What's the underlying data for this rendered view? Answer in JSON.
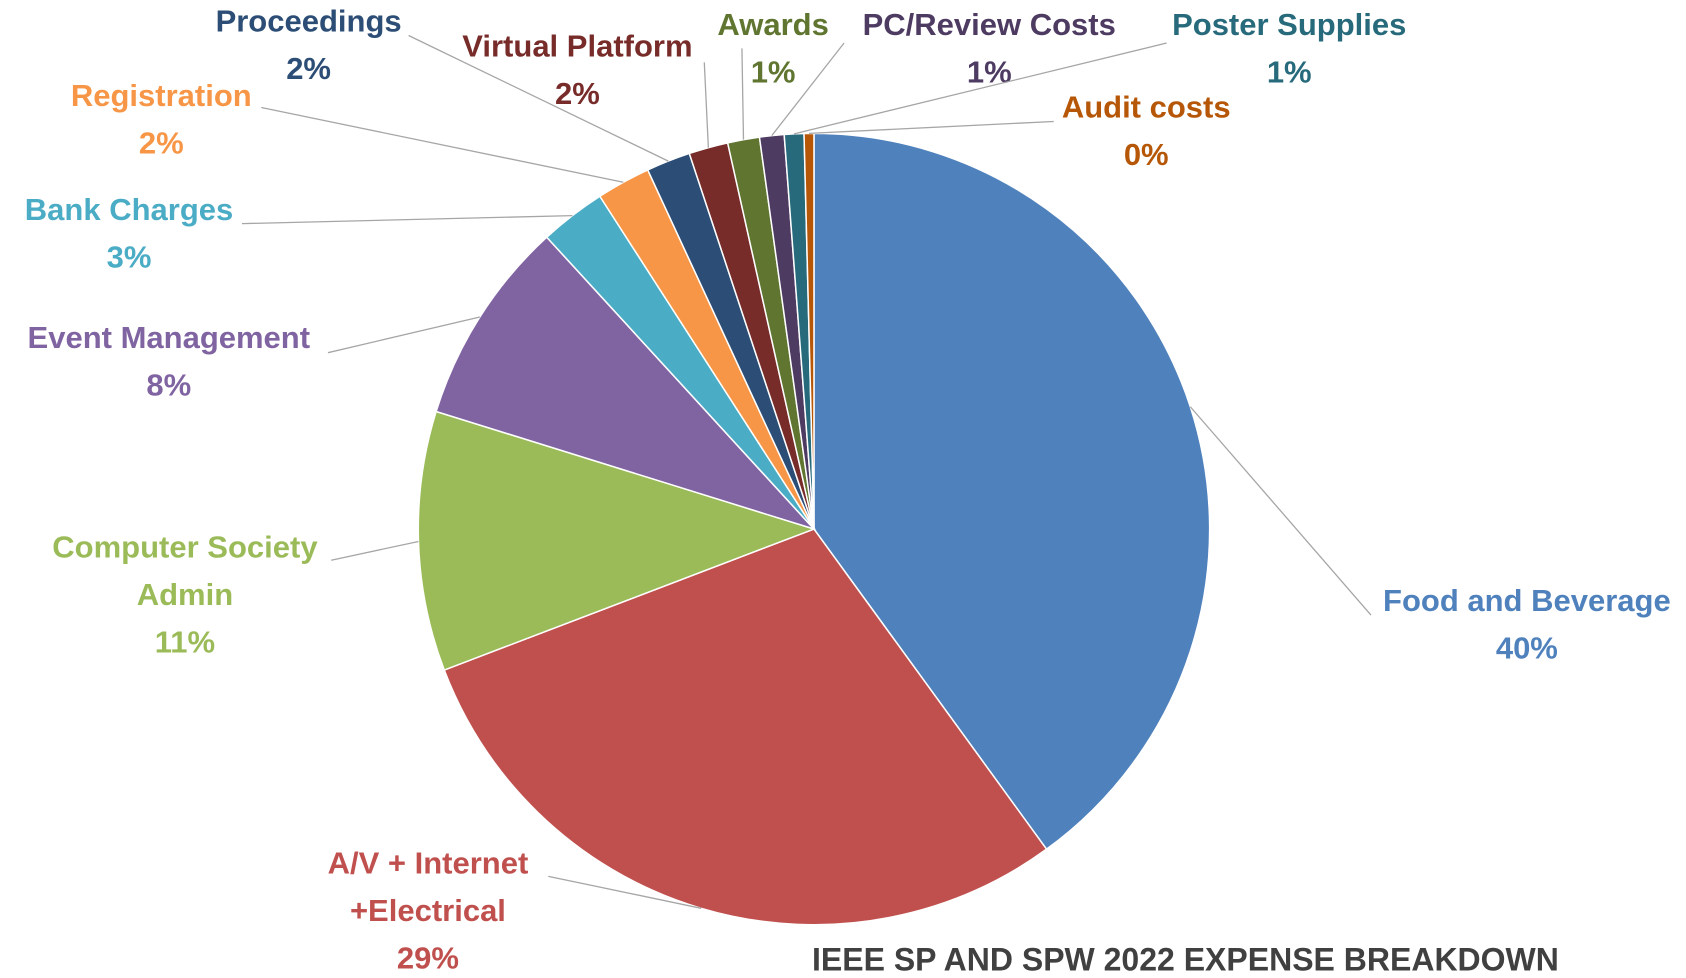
{
  "chart_data": {
    "type": "pie",
    "title": "IEEE SP AND SPW 2022 EXPENSE BREAKDOWN",
    "categories": [
      "Food and Beverage",
      "A/V + Internet +Electrical",
      "Computer Society Admin",
      "Event Management",
      "Bank Charges",
      "Registration",
      "Proceedings",
      "Virtual Platform",
      "Awards",
      "PC/Review Costs",
      "Poster Supplies",
      "Audit costs"
    ],
    "values": [
      40.0,
      29.2,
      10.6,
      8.4,
      2.7,
      2.2,
      1.8,
      1.6,
      1.3,
      1.0,
      0.8,
      0.4
    ],
    "value_labels": [
      "40%",
      "29%",
      "11%",
      "8%",
      "3%",
      "2%",
      "2%",
      "2%",
      "1%",
      "1%",
      "1%",
      "0%"
    ],
    "colors": [
      "#4f81bd",
      "#c0504d",
      "#9bbb59",
      "#8064a2",
      "#4bacc6",
      "#f79646",
      "#2c4d75",
      "#772c2a",
      "#5f7530",
      "#4d3b62",
      "#276a7c",
      "#b65708"
    ]
  }
}
